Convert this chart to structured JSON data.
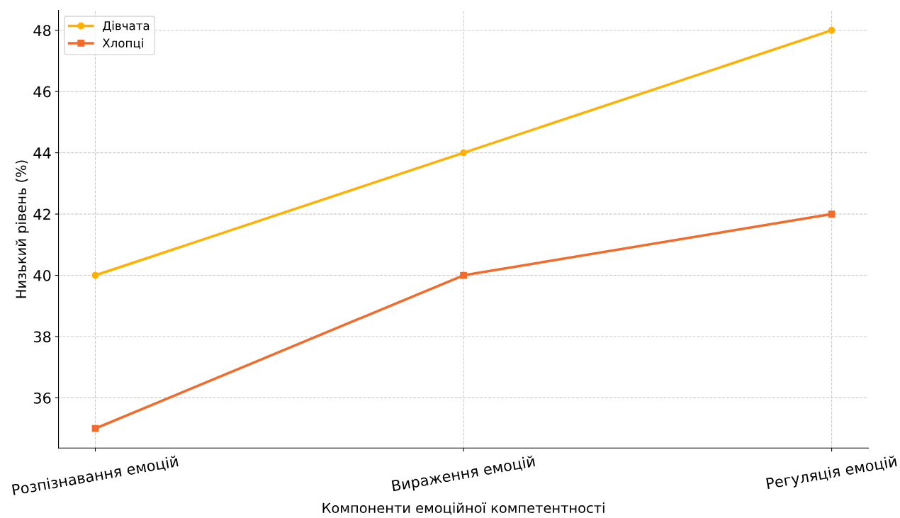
{
  "chart_data": {
    "type": "line",
    "xlabel": "Компоненти емоційної компетентності",
    "ylabel": "Низький рівень (%)",
    "categories": [
      "Розпізнавання емоцій",
      "Вираження емоцій",
      "Регуляція емоцій"
    ],
    "series": [
      {
        "name": "Дівчата",
        "color": "#ffb000",
        "marker": "circle",
        "values": [
          40,
          44,
          48
        ]
      },
      {
        "name": "Хлопці",
        "color": "#f26b2a",
        "marker": "square",
        "values": [
          35,
          40,
          42
        ]
      }
    ],
    "ylim": [
      34.36,
      48.65
    ],
    "yticks": [
      36,
      38,
      40,
      42,
      44,
      46,
      48
    ],
    "grid": true,
    "legend": "top left",
    "line_style": "solid"
  }
}
